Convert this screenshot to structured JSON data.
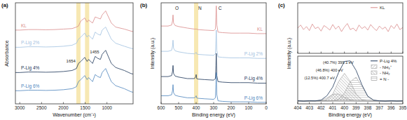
{
  "chart_data": [
    {
      "type": "line",
      "title": "(a)",
      "xlabel": "Wavenumber (cm⁻¹)",
      "ylabel": "Absorbance",
      "x": [
        3100,
        3000,
        2800,
        2600,
        2400,
        2200,
        2000,
        1800,
        1700,
        1654,
        1600,
        1510,
        1455,
        1420,
        1330,
        1270,
        1210,
        1150,
        1110,
        1030,
        900,
        800,
        600,
        450,
        400
      ],
      "series": [
        {
          "name": "KL",
          "color": "#d98a8a",
          "values": [
            73,
            73,
            73.5,
            73.5,
            73.3,
            73.5,
            74,
            74.5,
            76,
            77,
            82,
            85,
            81,
            83,
            80,
            86,
            85,
            84,
            88,
            92,
            80,
            76,
            74,
            72,
            71.5
          ]
        },
        {
          "name": "P-Lig 2%",
          "color": "#9fc0e0",
          "values": [
            56,
            56,
            56.5,
            56.5,
            56.3,
            56.5,
            57,
            58,
            60,
            64,
            66,
            70,
            66,
            68,
            64,
            71,
            69,
            68,
            73,
            76,
            64,
            60,
            57,
            55,
            54.5
          ]
        },
        {
          "name": "P-Lig 4%",
          "color": "#1c3558",
          "values": [
            31,
            31,
            31.5,
            31.5,
            31.3,
            31.5,
            32,
            33,
            35,
            40,
            42,
            46,
            42,
            44,
            40,
            47,
            45,
            44,
            49,
            53,
            40,
            36,
            33,
            30,
            29.5
          ]
        },
        {
          "name": "P-Lig 6%",
          "color": "#4d84bd",
          "values": [
            13,
            13,
            13.5,
            13.5,
            13.3,
            13.5,
            14,
            15,
            17,
            22,
            24,
            28,
            24,
            26,
            22,
            29,
            27,
            26,
            31,
            35,
            22,
            18,
            15,
            12,
            11.5
          ]
        }
      ],
      "xlim": [
        3100,
        400
      ],
      "ylim": [
        0,
        100
      ],
      "xticks": [
        3000,
        2500,
        2000,
        1500,
        1000
      ],
      "tick_labels": "x",
      "bands": [
        1654,
        1455
      ],
      "annotations": [
        {
          "x": 1654,
          "text": "1654"
        },
        {
          "x": 1455,
          "text": "1455"
        }
      ]
    },
    {
      "type": "line",
      "title": "(b)",
      "xlabel": "Binding energy (eV)",
      "ylabel": "Intensity (a.u.)",
      "x": [
        600,
        560,
        540,
        535,
        532,
        529,
        520,
        500,
        450,
        410,
        402,
        400,
        397,
        390,
        350,
        300,
        290,
        287,
        285,
        282,
        275,
        250,
        200,
        150,
        100,
        50,
        0
      ],
      "series": [
        {
          "name": "KL",
          "color": "#d98a8a",
          "values": [
            77,
            77,
            78,
            82,
            88,
            80,
            77.5,
            76.5,
            75,
            74,
            74,
            74,
            74,
            73.5,
            73,
            72.5,
            74,
            86,
            97,
            78,
            71,
            70.5,
            70,
            70,
            70,
            69.5,
            69.5
          ]
        },
        {
          "name": "P-Lig 2%",
          "color": "#9fc0e0",
          "values": [
            52,
            52,
            53,
            57,
            63,
            55,
            52.5,
            51.5,
            50,
            49.5,
            50.5,
            51,
            49.5,
            49,
            48.5,
            48,
            49.5,
            62,
            73,
            53,
            46.5,
            46,
            45.5,
            45.5,
            45.5,
            45,
            45
          ]
        },
        {
          "name": "P-Lig 4%",
          "color": "#1c3558",
          "values": [
            27,
            27,
            28,
            32,
            38,
            30,
            27.5,
            26.5,
            25,
            25,
            27,
            29,
            25,
            24.5,
            24,
            23.5,
            25,
            38,
            50,
            28,
            22,
            21.5,
            21,
            21,
            21,
            20.5,
            20.5
          ]
        },
        {
          "name": "P-Lig 6%",
          "color": "#4d84bd",
          "values": [
            8,
            8,
            9,
            13,
            19,
            11,
            8.5,
            7.5,
            6,
            6,
            7,
            8,
            6,
            5.5,
            5,
            4.5,
            6,
            19,
            31,
            9,
            3,
            2.5,
            2,
            2,
            2,
            1.5,
            1.5
          ]
        }
      ],
      "xlim": [
        600,
        0
      ],
      "ylim": [
        0,
        100
      ],
      "xticks": [
        600,
        500,
        400,
        300,
        200,
        100,
        0
      ],
      "tick_labels": "x",
      "bands": [
        400
      ],
      "annotations": [
        {
          "x": 532,
          "text": "O"
        },
        {
          "x": 400,
          "text": "N"
        },
        {
          "x": 285,
          "text": "C"
        }
      ]
    },
    {
      "type": "line",
      "title": "(c)",
      "ylabel": "Intensity (a.u.)",
      "x": [
        404,
        403.75,
        403.5,
        403.25,
        403,
        402.75,
        402.5,
        402.25,
        402,
        401.75,
        401.5,
        401.25,
        401,
        400.75,
        400.5,
        400.25,
        400,
        399.75,
        399.5,
        399.25,
        399,
        398.75,
        398.5,
        398.25,
        398,
        397.75,
        397.5,
        397.25,
        397,
        396.75,
        396.5,
        396.25,
        396,
        395.75,
        395.5,
        395.25,
        395
      ],
      "series": [
        {
          "name": "KL",
          "color": "#d98a8a",
          "values": [
            50,
            56,
            47,
            53,
            45,
            58,
            49,
            52,
            44,
            55,
            51,
            46,
            57,
            48,
            54,
            43,
            52,
            59,
            47,
            50,
            44,
            56,
            49,
            53,
            46,
            57,
            50,
            45,
            54,
            48,
            52,
            43,
            55,
            49,
            58,
            47,
            51
          ]
        }
      ],
      "xlim": [
        404,
        395
      ],
      "ylim": [
        0,
        100
      ],
      "xticks": [
        404,
        403,
        402,
        401,
        400,
        399,
        398,
        397,
        396,
        395
      ],
      "tick_labels": false,
      "legend": "upper right"
    },
    {
      "type": "line",
      "xlabel": "Binding energy (eV)",
      "x": [
        404,
        403.5,
        403,
        402.5,
        402,
        401.5,
        401,
        400.5,
        400,
        399.5,
        399,
        398.5,
        398,
        397.5,
        397,
        396.5,
        396,
        395.5,
        395
      ],
      "series": [
        {
          "name": "P-Lig 4%",
          "type": "line",
          "color": "#1c3558",
          "values": [
            0.5,
            -0.3,
            0.4,
            0.2,
            1.6,
            9.1,
            24.2,
            49.4,
            68.8,
            69.8,
            53.2,
            28.1,
            8.3,
            1.5,
            0.3,
            -0.2,
            0.4,
            -0.1,
            0.2
          ]
        },
        {
          "name": "- NH₃⁺",
          "type": "area",
          "color": "#8c8c8c",
          "values": [
            0,
            0,
            0,
            0.1,
            1.2,
            5.3,
            11.5,
            12.3,
            6.6,
            1.8,
            0.2,
            0,
            0,
            0,
            0,
            0,
            0,
            0,
            0
          ]
        },
        {
          "name": "- NH₂",
          "type": "area",
          "color": "#8c8c8c",
          "values": [
            0,
            0,
            0,
            0,
            0.2,
            2.1,
            12,
            33.9,
            48,
            33.9,
            12,
            2.1,
            0.2,
            0,
            0,
            0,
            0,
            0,
            0
          ]
        },
        {
          "name": "= N -",
          "type": "area",
          "color": "#8c8c8c",
          "values": [
            0,
            0,
            0,
            0,
            0,
            0,
            0.3,
            2.8,
            13.7,
            33.6,
            41.4,
            25.5,
            7.8,
            1.2,
            0.1,
            0,
            0,
            0,
            0
          ]
        }
      ],
      "xlim": [
        404,
        395
      ],
      "ylim": [
        -5,
        78
      ],
      "xticks": [
        404,
        403,
        402,
        401,
        400,
        399,
        398,
        397,
        396,
        395
      ],
      "tick_labels": "x",
      "legend": "upper right",
      "annotations": [
        {
          "x": 399.1,
          "text": "(40.7%) 399.1 eV"
        },
        {
          "x": 400,
          "text": "(46.8%) 400 eV"
        },
        {
          "x": 400.7,
          "text": "(12.5%) 400.7 eV"
        }
      ]
    }
  ]
}
